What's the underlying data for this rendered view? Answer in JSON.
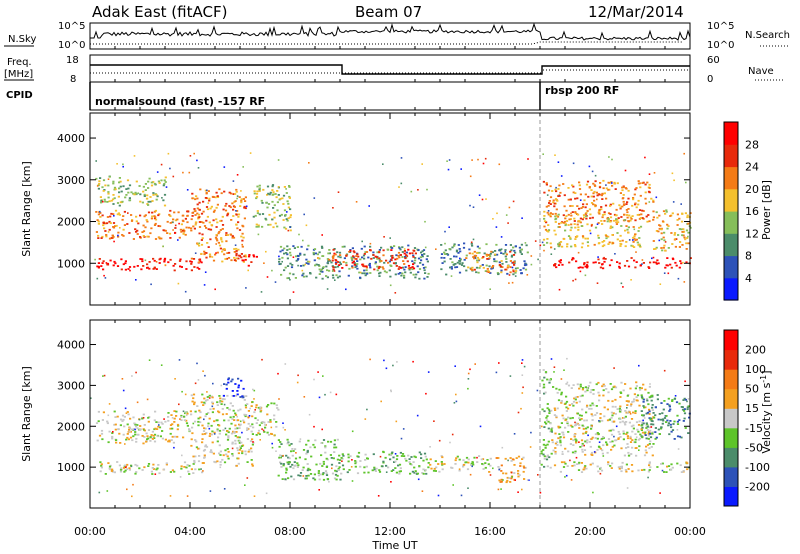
{
  "header": {
    "station": "Adak East (fitACF)",
    "beam": "Beam 07",
    "date": "12/Mar/2014"
  },
  "panels": {
    "nsky": {
      "label": "N.Sky",
      "tick_top": "10^5",
      "tick_bottom": "10^0",
      "right_label": "N.Search",
      "right_tick_top": "10^5",
      "right_tick_bottom": "10^0"
    },
    "freq": {
      "label_line1": "Freq.",
      "label_line2": "[MHz]",
      "tick_top": "18",
      "tick_bottom": "8",
      "right_label": "Nave",
      "right_tick_top": "60",
      "right_tick_bottom": "0"
    },
    "cpid": {
      "label": "CPID",
      "segments": [
        {
          "start_hour": 0,
          "end_hour": 18,
          "name": "normalsound (fast) -157 RF"
        },
        {
          "start_hour": 18,
          "end_hour": 24,
          "name": "rbsp 200 RF"
        }
      ]
    }
  },
  "chart_data": [
    {
      "type": "heatmap",
      "title": "",
      "ylabel": "Slant Range [km]",
      "xlabel": "",
      "xlim_hours": [
        0,
        24
      ],
      "ylim": [
        0,
        4600
      ],
      "yticks": [
        1000,
        2000,
        3000,
        4000
      ],
      "colorbar": {
        "label": "Power [dB]",
        "ticks": [
          "4",
          "8",
          "12",
          "16",
          "20",
          "24",
          "28"
        ],
        "colors": [
          "#0a1aff",
          "#2d52b8",
          "#4b8c6a",
          "#86be5a",
          "#f4c02e",
          "#f47b16",
          "#e82a0b",
          "#ff0000"
        ]
      },
      "features": [
        {
          "x": [
            0.2,
            4.5
          ],
          "y": [
            850,
            1150
          ],
          "level": 7
        },
        {
          "x": [
            0.2,
            4.0
          ],
          "y": [
            1600,
            2300
          ],
          "level": 5
        },
        {
          "x": [
            0.2,
            3.0
          ],
          "y": [
            2400,
            3100
          ],
          "level": 3
        },
        {
          "x": [
            4.0,
            6.2
          ],
          "y": [
            1050,
            2800
          ],
          "level": 5
        },
        {
          "x": [
            6.0,
            6.8
          ],
          "y": [
            950,
            1250
          ],
          "level": 7
        },
        {
          "x": [
            6.5,
            8.0
          ],
          "y": [
            1800,
            2900
          ],
          "level": 3
        },
        {
          "x": [
            7.5,
            13.5
          ],
          "y": [
            650,
            1450
          ],
          "level": 2
        },
        {
          "x": [
            9.5,
            13.0
          ],
          "y": [
            850,
            1350
          ],
          "level": 6
        },
        {
          "x": [
            14.0,
            17.5
          ],
          "y": [
            750,
            1500
          ],
          "level": 2
        },
        {
          "x": [
            15.0,
            17.0
          ],
          "y": [
            800,
            1300
          ],
          "level": 5
        },
        {
          "x": [
            18.1,
            22.5
          ],
          "y": [
            2000,
            3000
          ],
          "level": 5
        },
        {
          "x": [
            18.1,
            22.0
          ],
          "y": [
            1400,
            2200
          ],
          "level": 4
        },
        {
          "x": [
            18.5,
            24.0
          ],
          "y": [
            900,
            1150
          ],
          "level": 7
        },
        {
          "x": [
            22.5,
            24.0
          ],
          "y": [
            1300,
            2300
          ],
          "level": 4
        }
      ]
    },
    {
      "type": "heatmap",
      "title": "",
      "ylabel": "Slant Range [km]",
      "xlabel": "Time UT",
      "xlim_hours": [
        0,
        24
      ],
      "ylim": [
        0,
        4600
      ],
      "yticks": [
        1000,
        2000,
        3000,
        4000
      ],
      "xtick_labels": [
        "00:00",
        "04:00",
        "08:00",
        "12:00",
        "16:00",
        "20:00",
        "00:00"
      ],
      "colorbar": {
        "label": "Velocity [m s^-1]",
        "ticks": [
          "200",
          "100",
          "50",
          "15",
          "-15",
          "-50",
          "-100",
          "-200"
        ],
        "colors": [
          "#0a1aff",
          "#2d52b8",
          "#4b8c6a",
          "#5ec42a",
          "#c8c8c8",
          "#f4a020",
          "#f47b16",
          "#e82a0b",
          "#ff0000"
        ]
      },
      "features": [
        {
          "x": [
            0.2,
            4.5
          ],
          "y": [
            850,
            1150
          ],
          "level": 4
        },
        {
          "x": [
            0.2,
            4.0
          ],
          "y": [
            1600,
            2400
          ],
          "level": 4
        },
        {
          "x": [
            4.0,
            6.5
          ],
          "y": [
            1050,
            2800
          ],
          "level": 4
        },
        {
          "x": [
            5.3,
            6.1
          ],
          "y": [
            2700,
            3200
          ],
          "level": 0
        },
        {
          "x": [
            6.5,
            7.5
          ],
          "y": [
            1800,
            2600
          ],
          "level": 4
        },
        {
          "x": [
            7.5,
            10.0
          ],
          "y": [
            700,
            1700
          ],
          "level": 3
        },
        {
          "x": [
            10.0,
            13.5
          ],
          "y": [
            850,
            1400
          ],
          "level": 3
        },
        {
          "x": [
            13.5,
            16.0
          ],
          "y": [
            900,
            1300
          ],
          "level": 4
        },
        {
          "x": [
            16.2,
            17.4
          ],
          "y": [
            650,
            1300
          ],
          "level": 5
        },
        {
          "x": [
            18.0,
            18.4
          ],
          "y": [
            1000,
            3400
          ],
          "level": 3
        },
        {
          "x": [
            18.4,
            22.5
          ],
          "y": [
            1300,
            3100
          ],
          "level": 4
        },
        {
          "x": [
            18.5,
            24.0
          ],
          "y": [
            900,
            1150
          ],
          "level": 4
        },
        {
          "x": [
            22.0,
            24.0
          ],
          "y": [
            1700,
            2800
          ],
          "level": 2
        }
      ]
    }
  ]
}
